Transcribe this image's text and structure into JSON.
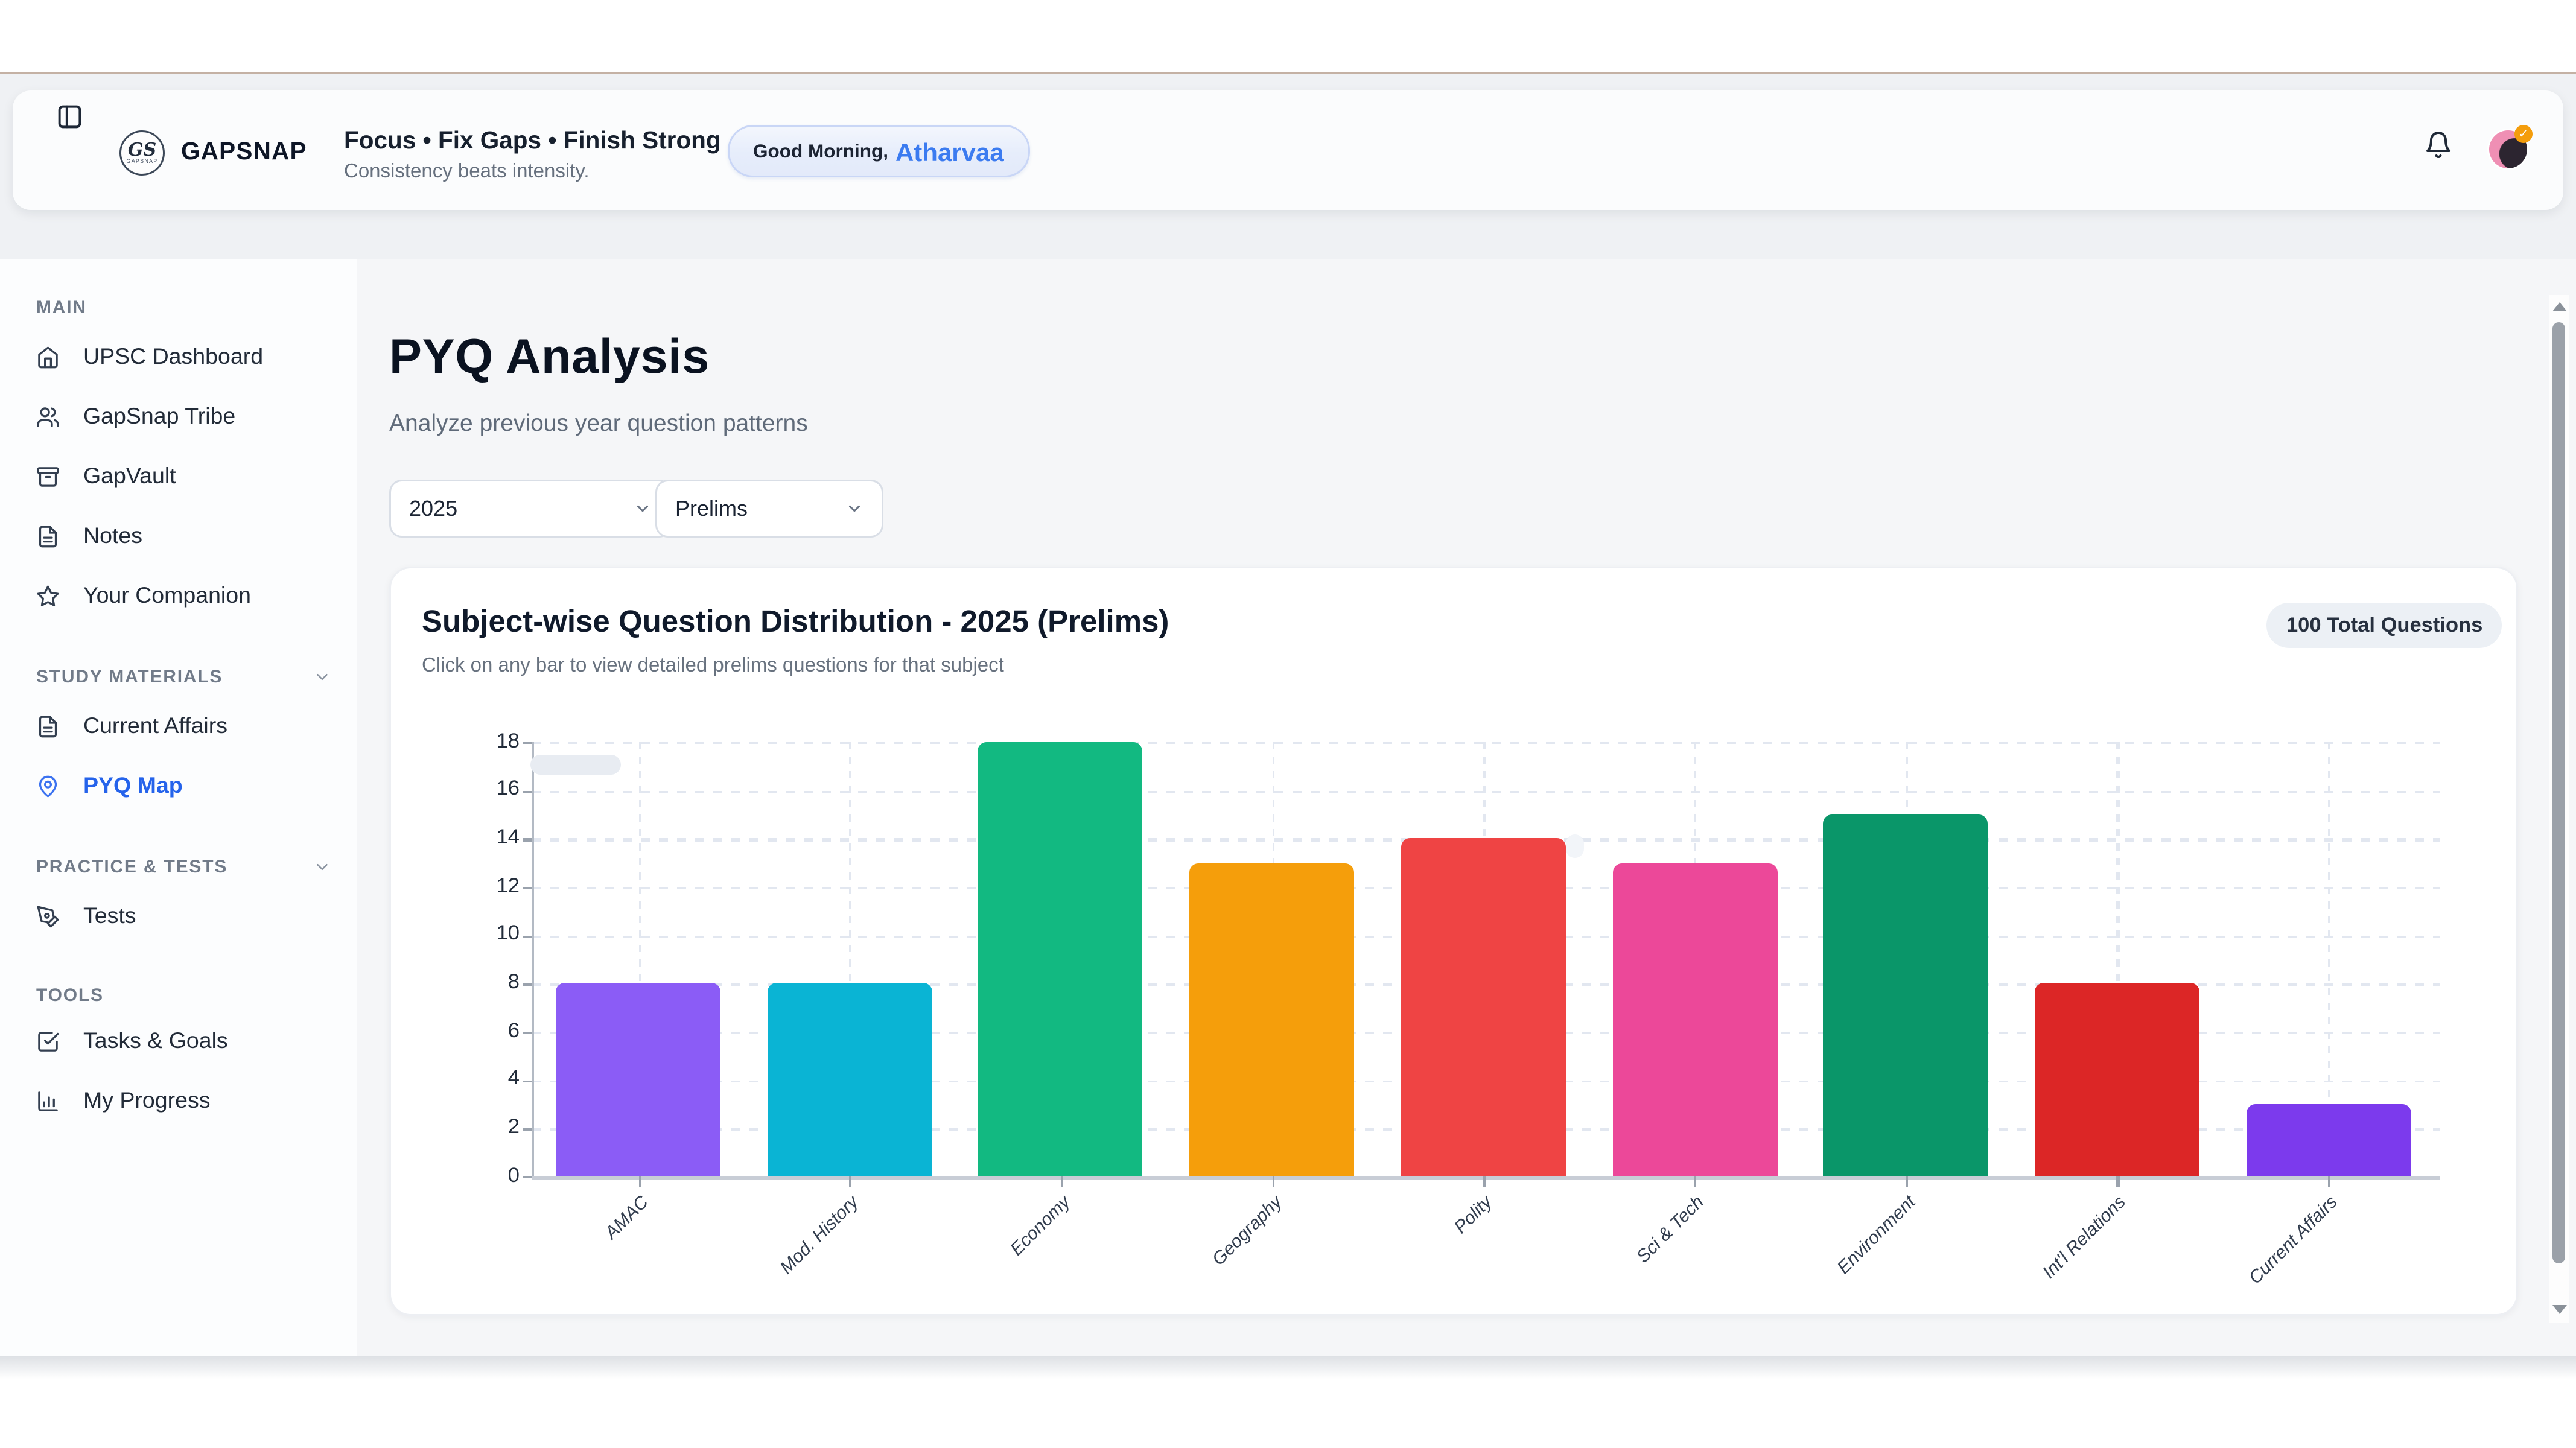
{
  "header": {
    "brand": "GAPSNAP",
    "logo_monogram": "GS",
    "logo_sub": "GAPSNAP",
    "tagline": "Focus • Fix Gaps • Finish Strong",
    "tagline_sub": "Consistency beats intensity.",
    "greeting_prefix": "Good Morning,",
    "greeting_name": "Atharvaa"
  },
  "sidebar": {
    "sections": [
      {
        "label": "MAIN",
        "collapsible": false,
        "items": [
          {
            "icon": "home-icon",
            "label": "UPSC Dashboard"
          },
          {
            "icon": "users-icon",
            "label": "GapSnap Tribe"
          },
          {
            "icon": "archive-icon",
            "label": "GapVault"
          },
          {
            "icon": "file-text-icon",
            "label": "Notes"
          },
          {
            "icon": "star-icon",
            "label": "Your Companion"
          }
        ]
      },
      {
        "label": "STUDY MATERIALS",
        "collapsible": true,
        "items": [
          {
            "icon": "file-text-icon",
            "label": "Current Affairs"
          },
          {
            "icon": "map-pin-icon",
            "label": "PYQ Map",
            "active": true
          }
        ]
      },
      {
        "label": "PRACTICE & TESTS",
        "collapsible": true,
        "items": [
          {
            "icon": "pen-tool-icon",
            "label": "Tests"
          }
        ]
      },
      {
        "label": "TOOLS",
        "collapsible": false,
        "items": [
          {
            "icon": "check-square-icon",
            "label": "Tasks & Goals"
          },
          {
            "icon": "bar-chart-icon",
            "label": "My Progress"
          }
        ]
      }
    ]
  },
  "page": {
    "title": "PYQ Analysis",
    "subtitle": "Analyze previous year question patterns",
    "filters": {
      "year": "2025",
      "exam": "Prelims"
    }
  },
  "card": {
    "title": "Subject-wise Question Distribution - 2025 (Prelims)",
    "subtitle": "Click on any bar to view detailed prelims questions for that subject",
    "badge": "100 Total Questions"
  },
  "chart_data": {
    "type": "bar",
    "title": "Subject-wise Question Distribution - 2025 (Prelims)",
    "categories": [
      "AMAC",
      "Mod. History",
      "Economy",
      "Geography",
      "Polity",
      "Sci & Tech",
      "Environment",
      "Int'l Relations",
      "Current Affairs"
    ],
    "values": [
      8,
      8,
      18,
      13,
      14,
      13,
      15,
      8,
      3
    ],
    "colors": [
      "#8b5cf6",
      "#0ab4d4",
      "#12b981",
      "#f59e0b",
      "#ef4444",
      "#ec4899",
      "#0a9669",
      "#dc2626",
      "#7c3aed"
    ],
    "total_questions": 100,
    "xlabel": "",
    "ylabel": "",
    "ylim": [
      0,
      18
    ],
    "ytick_step": 2,
    "grid": "dashed",
    "legend": "none",
    "accent_blue": "#2563eb"
  }
}
